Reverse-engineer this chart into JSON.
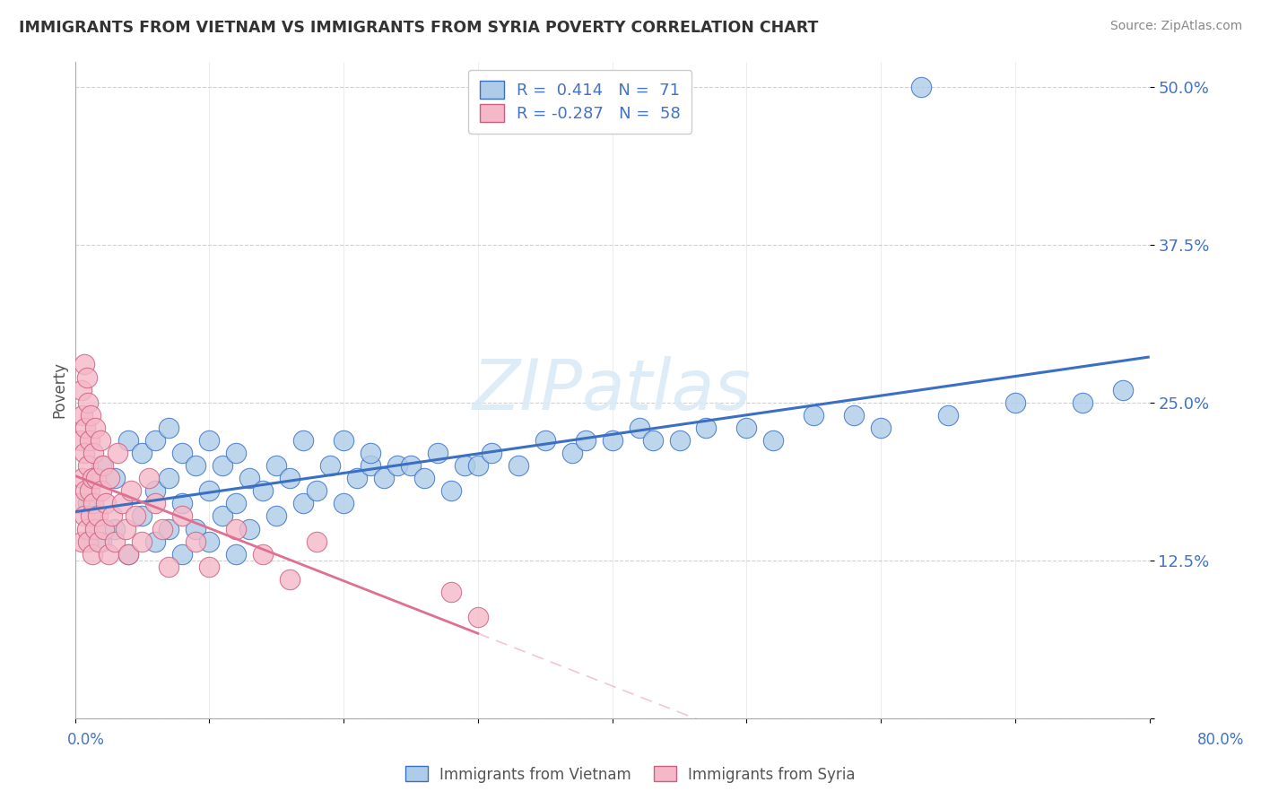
{
  "title": "IMMIGRANTS FROM VIETNAM VS IMMIGRANTS FROM SYRIA POVERTY CORRELATION CHART",
  "source": "Source: ZipAtlas.com",
  "ylabel": "Poverty",
  "xlim": [
    0.0,
    0.8
  ],
  "ylim": [
    0.0,
    0.52
  ],
  "ytick_vals": [
    0.0,
    0.125,
    0.25,
    0.375,
    0.5
  ],
  "ytick_labels": [
    "",
    "12.5%",
    "25.0%",
    "37.5%",
    "50.0%"
  ],
  "color_vietnam": "#aecce8",
  "color_syria": "#f5b8c8",
  "color_vietnam_line": "#3a6fc4",
  "color_syria_line": "#e07090",
  "color_title": "#333333",
  "watermark_color": "#daeaf5",
  "background": "#ffffff",
  "legend_label1": "R =  0.414   N =  71",
  "legend_label2": "R = -0.287   N =  58",
  "bottom_label1": "Immigrants from Vietnam",
  "bottom_label2": "Immigrants from Syria"
}
